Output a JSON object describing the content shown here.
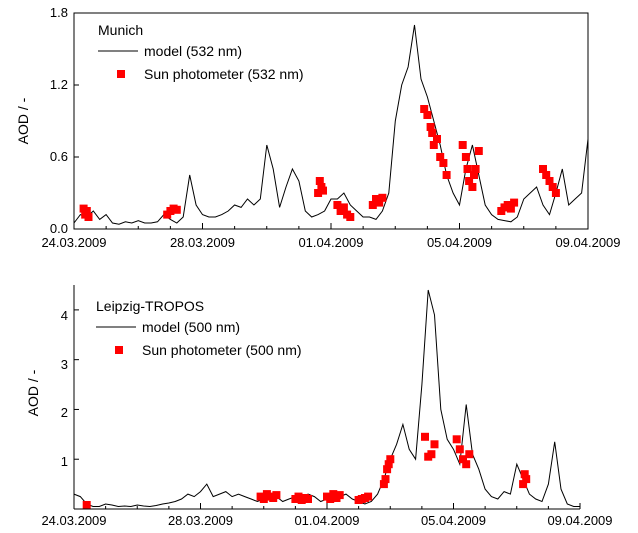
{
  "chart_data": [
    {
      "type": "line",
      "title": "",
      "xlabel": "",
      "ylabel": "AOD / -",
      "xlim": [
        "24.03.2009",
        "09.04.2009"
      ],
      "ylim": [
        0,
        1.8
      ],
      "xticks": [
        "24.03.2009",
        "28.03.2009",
        "01.04.2009",
        "05.04.2009",
        "09.04.2009"
      ],
      "yticks": [
        "0.0",
        "0.6",
        "1.2",
        "1.8"
      ],
      "legend_location": "top-left",
      "legend_title": "Munich",
      "series": [
        {
          "name": "model (532 nm)",
          "kind": "line",
          "color": "#000000",
          "x": [
            0,
            0.2,
            0.4,
            0.6,
            0.8,
            1.0,
            1.2,
            1.4,
            1.6,
            1.8,
            2.0,
            2.2,
            2.4,
            2.6,
            2.8,
            3.0,
            3.2,
            3.4,
            3.6,
            3.8,
            4.0,
            4.2,
            4.4,
            4.6,
            4.8,
            5.0,
            5.2,
            5.4,
            5.6,
            5.8,
            6.0,
            6.2,
            6.4,
            6.6,
            6.8,
            7.0,
            7.2,
            7.4,
            7.6,
            7.8,
            8.0,
            8.2,
            8.4,
            8.6,
            8.8,
            9.0,
            9.2,
            9.4,
            9.6,
            9.8,
            10.0,
            10.2,
            10.4,
            10.6,
            10.8,
            11.0,
            11.2,
            11.4,
            11.6,
            11.8,
            12.0,
            12.2,
            12.4,
            12.6,
            12.8,
            13.0,
            13.2,
            13.4,
            13.6,
            13.8,
            14.0,
            14.2,
            14.4,
            14.6,
            14.8,
            15.0,
            15.2,
            15.4,
            15.6,
            15.8,
            16.0
          ],
          "y": [
            0.05,
            0.12,
            0.1,
            0.15,
            0.08,
            0.12,
            0.05,
            0.04,
            0.06,
            0.05,
            0.07,
            0.05,
            0.05,
            0.06,
            0.12,
            0.08,
            0.05,
            0.1,
            0.45,
            0.2,
            0.12,
            0.1,
            0.1,
            0.12,
            0.15,
            0.2,
            0.18,
            0.25,
            0.2,
            0.25,
            0.7,
            0.5,
            0.18,
            0.35,
            0.5,
            0.4,
            0.15,
            0.1,
            0.12,
            0.15,
            0.25,
            0.25,
            0.3,
            0.2,
            0.15,
            0.1,
            0.1,
            0.08,
            0.15,
            0.3,
            0.9,
            1.2,
            1.35,
            1.7,
            1.25,
            1.1,
            0.9,
            0.7,
            0.45,
            0.3,
            0.2,
            0.5,
            0.7,
            0.45,
            0.2,
            0.12,
            0.08,
            0.07,
            0.06,
            0.1,
            0.25,
            0.3,
            0.35,
            0.2,
            0.12,
            0.3,
            0.5,
            0.2,
            0.25,
            0.3,
            0.75
          ]
        },
        {
          "name": "Sun photometer (532 nm)",
          "kind": "scatter",
          "color": "#ff0000",
          "x": [
            0.3,
            0.35,
            0.4,
            0.45,
            2.9,
            3.0,
            3.1,
            3.2,
            7.6,
            7.65,
            7.7,
            7.75,
            8.2,
            8.3,
            8.4,
            8.5,
            8.6,
            9.3,
            9.4,
            9.5,
            9.6,
            10.9,
            11.0,
            11.1,
            11.15,
            11.2,
            11.3,
            11.4,
            11.5,
            11.6,
            12.1,
            12.2,
            12.25,
            12.3,
            12.4,
            12.45,
            12.5,
            12.6,
            13.3,
            13.4,
            13.5,
            13.6,
            13.7,
            14.6,
            14.7,
            14.8,
            14.9,
            15.0
          ],
          "y": [
            0.17,
            0.12,
            0.15,
            0.1,
            0.12,
            0.15,
            0.17,
            0.16,
            0.3,
            0.4,
            0.35,
            0.32,
            0.2,
            0.15,
            0.18,
            0.12,
            0.1,
            0.2,
            0.25,
            0.22,
            0.26,
            1.0,
            0.95,
            0.85,
            0.8,
            0.7,
            0.75,
            0.6,
            0.55,
            0.45,
            0.7,
            0.6,
            0.5,
            0.4,
            0.35,
            0.45,
            0.5,
            0.65,
            0.15,
            0.18,
            0.2,
            0.17,
            0.22,
            0.5,
            0.45,
            0.4,
            0.35,
            0.3
          ]
        }
      ]
    },
    {
      "type": "line",
      "title": "",
      "xlabel": "",
      "ylabel": "AOD / -",
      "xlim": [
        "24.03.2009",
        "09.04.2009"
      ],
      "ylim": [
        0,
        4.5
      ],
      "xticks": [
        "24.03.2009",
        "28.03.2009",
        "01.04.2009",
        "05.04.2009",
        "09.04.2009"
      ],
      "yticks": [
        "1",
        "2",
        "3",
        "4"
      ],
      "legend_location": "top-left",
      "legend_title": "Leipzig-TROPOS",
      "series": [
        {
          "name": "model (500 nm)",
          "kind": "line",
          "color": "#000000",
          "x": [
            0,
            0.2,
            0.4,
            0.6,
            0.8,
            1.0,
            1.2,
            1.4,
            1.6,
            1.8,
            2.0,
            2.2,
            2.4,
            2.6,
            2.8,
            3.0,
            3.2,
            3.4,
            3.6,
            3.8,
            4.0,
            4.2,
            4.4,
            4.6,
            4.8,
            5.0,
            5.2,
            5.4,
            5.6,
            5.8,
            6.0,
            6.2,
            6.4,
            6.6,
            6.8,
            7.0,
            7.2,
            7.4,
            7.6,
            7.8,
            8.0,
            8.2,
            8.4,
            8.6,
            8.8,
            9.0,
            9.2,
            9.4,
            9.6,
            9.8,
            10.0,
            10.2,
            10.4,
            10.6,
            10.8,
            11.0,
            11.2,
            11.4,
            11.6,
            11.8,
            12.0,
            12.2,
            12.4,
            12.6,
            12.8,
            13.0,
            13.2,
            13.4,
            13.6,
            13.8,
            14.0,
            14.2,
            14.4,
            14.6,
            14.8,
            15.0,
            15.2,
            15.4,
            15.6,
            15.8,
            16.0
          ],
          "y": [
            0.3,
            0.25,
            0.1,
            0.05,
            0.05,
            0.1,
            0.08,
            0.05,
            0.06,
            0.05,
            0.08,
            0.06,
            0.05,
            0.07,
            0.1,
            0.12,
            0.15,
            0.2,
            0.3,
            0.25,
            0.35,
            0.5,
            0.25,
            0.3,
            0.35,
            0.25,
            0.3,
            0.25,
            0.2,
            0.15,
            0.2,
            0.3,
            0.25,
            0.15,
            0.2,
            0.25,
            0.2,
            0.3,
            0.25,
            0.15,
            0.2,
            0.15,
            0.25,
            0.3,
            0.2,
            0.15,
            0.1,
            0.15,
            0.3,
            0.6,
            1.0,
            1.3,
            1.7,
            1.2,
            1.0,
            2.5,
            4.4,
            3.9,
            2.0,
            1.4,
            1.2,
            0.9,
            2.1,
            1.1,
            0.8,
            0.4,
            0.25,
            0.2,
            0.35,
            0.3,
            0.9,
            0.6,
            0.3,
            0.2,
            0.15,
            0.5,
            1.35,
            0.4,
            0.1,
            0.05,
            0.05
          ]
        },
        {
          "name": "Sun photometer (500 nm)",
          "kind": "scatter",
          "color": "#ff0000",
          "x": [
            0.4,
            5.9,
            6.0,
            6.1,
            6.2,
            6.3,
            6.4,
            7.0,
            7.1,
            7.2,
            7.3,
            7.4,
            8.0,
            8.1,
            8.2,
            8.3,
            8.4,
            9.0,
            9.1,
            9.2,
            9.3,
            9.8,
            9.85,
            9.9,
            9.95,
            10.0,
            11.1,
            11.2,
            11.3,
            11.4,
            12.1,
            12.2,
            12.3,
            12.4,
            12.5,
            14.2,
            14.25,
            14.3
          ],
          "y": [
            0.08,
            0.25,
            0.2,
            0.3,
            0.25,
            0.22,
            0.28,
            0.2,
            0.25,
            0.18,
            0.22,
            0.2,
            0.25,
            0.2,
            0.3,
            0.22,
            0.28,
            0.18,
            0.2,
            0.22,
            0.25,
            0.5,
            0.6,
            0.8,
            0.9,
            1.0,
            1.45,
            1.05,
            1.1,
            1.3,
            1.4,
            1.2,
            1.0,
            0.9,
            1.1,
            0.5,
            0.7,
            0.6
          ]
        }
      ]
    }
  ]
}
